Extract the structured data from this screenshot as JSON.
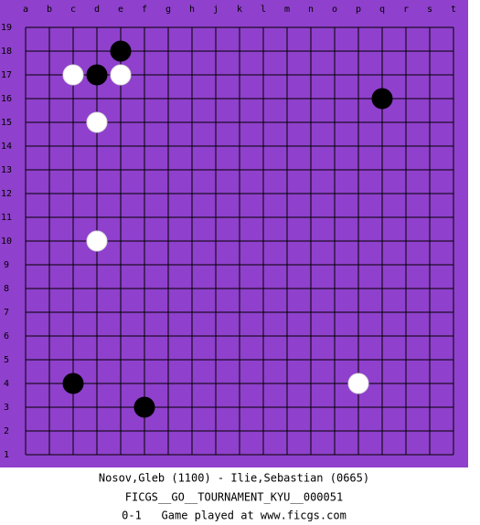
{
  "board": {
    "columns": [
      "a",
      "b",
      "c",
      "d",
      "e",
      "f",
      "g",
      "h",
      "j",
      "k",
      "l",
      "m",
      "n",
      "o",
      "p",
      "q",
      "r",
      "s",
      "t"
    ],
    "rows": [
      19,
      18,
      17,
      16,
      15,
      14,
      13,
      12,
      11,
      10,
      9,
      8,
      7,
      6,
      5,
      4,
      3,
      2,
      1
    ],
    "stones": [
      {
        "color": "black",
        "col": "e",
        "row": 18
      },
      {
        "color": "black",
        "col": "d",
        "row": 17
      },
      {
        "color": "white",
        "col": "c",
        "row": 17
      },
      {
        "color": "white",
        "col": "e",
        "row": 17
      },
      {
        "color": "black",
        "col": "q",
        "row": 16
      },
      {
        "color": "white",
        "col": "d",
        "row": 15
      },
      {
        "color": "white",
        "col": "d",
        "row": 10
      },
      {
        "color": "black",
        "col": "c",
        "row": 4
      },
      {
        "color": "white",
        "col": "p",
        "row": 4
      },
      {
        "color": "black",
        "col": "f",
        "row": 3
      }
    ]
  },
  "captions": {
    "players": "Nosov,Gleb (1100) - Ilie,Sebastian (0665)",
    "event": "FICGS__GO__TOURNAMENT_KYU__000051",
    "result": "0-1   Game played at www.ficgs.com"
  }
}
